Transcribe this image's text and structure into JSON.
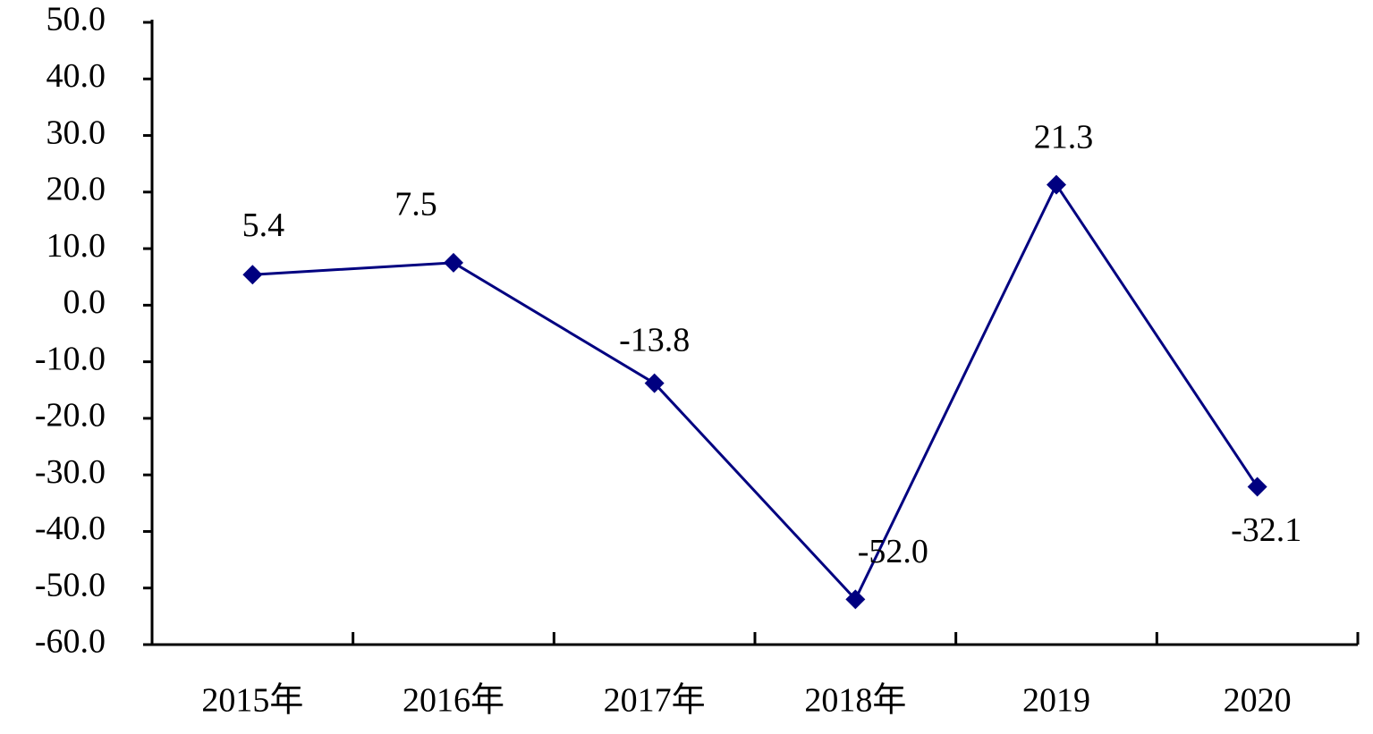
{
  "chart_data": {
    "type": "line",
    "categories": [
      "2015年",
      "2016年",
      "2017年",
      "2018年",
      "2019",
      "2020"
    ],
    "values": [
      5.4,
      7.5,
      -13.8,
      -52.0,
      21.3,
      -32.1
    ],
    "value_labels": [
      "5.4",
      "7.5",
      "-13.8",
      "-52.0",
      "21.3",
      "-32.1"
    ],
    "color": "#000080",
    "ylim": [
      -60,
      50
    ],
    "yticks": [
      {
        "value": -60,
        "label": "-60.0"
      },
      {
        "value": -50,
        "label": "-50.0"
      },
      {
        "value": -40,
        "label": "-40.0"
      },
      {
        "value": -30,
        "label": "-30.0"
      },
      {
        "value": -20,
        "label": "-20.0"
      },
      {
        "value": -10,
        "label": "-10.0"
      },
      {
        "value": 0,
        "label": "0.0"
      },
      {
        "value": 10,
        "label": "10.0"
      },
      {
        "value": 20,
        "label": "20.0"
      },
      {
        "value": 30,
        "label": "30.0"
      },
      {
        "value": 40,
        "label": "40.0"
      },
      {
        "value": 50,
        "label": "50.0"
      }
    ]
  }
}
